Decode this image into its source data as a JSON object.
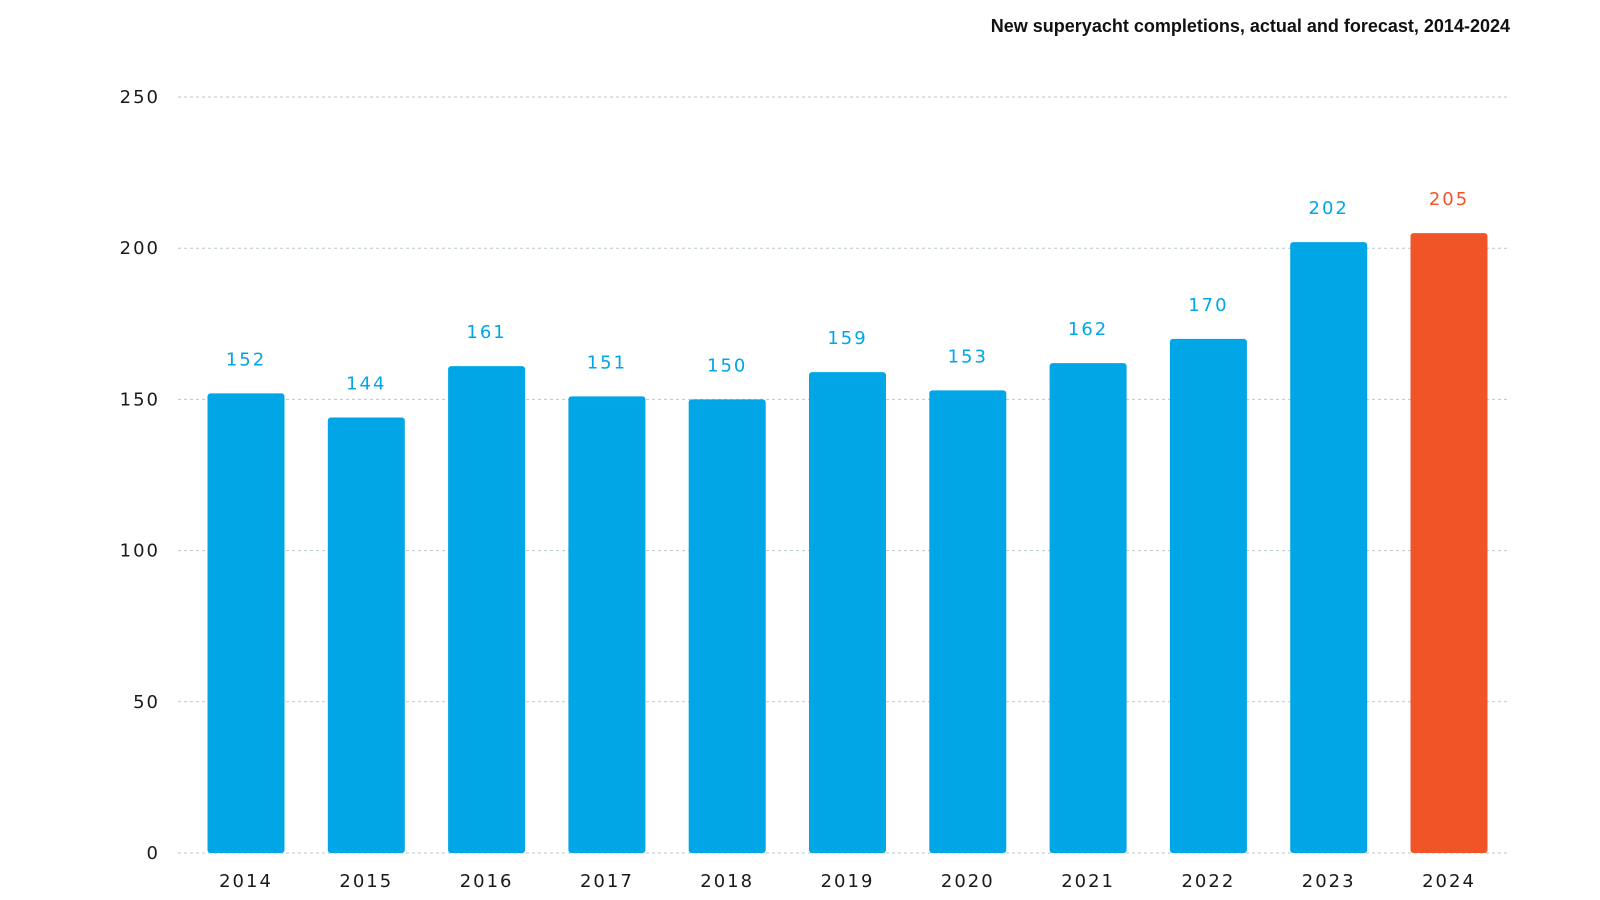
{
  "chart_data": {
    "type": "bar",
    "title": "New superyacht completions, actual and forecast, 2014-2024",
    "categories": [
      "2014",
      "2015",
      "2016",
      "2017",
      "2018",
      "2019",
      "2020",
      "2021",
      "2022",
      "2023",
      "2024"
    ],
    "values": [
      152,
      144,
      161,
      151,
      150,
      159,
      153,
      162,
      170,
      202,
      205
    ],
    "value_labels": [
      "152",
      "144",
      "161",
      "151",
      "150",
      "159",
      "153",
      "162",
      "170",
      "202",
      "205"
    ],
    "ylim": [
      0,
      250
    ],
    "yticks": [
      0,
      50,
      100,
      150,
      200,
      250
    ],
    "ytick_labels": [
      "0",
      "50",
      "100",
      "150",
      "200",
      "250"
    ],
    "xlabel": "",
    "ylabel": "",
    "grid": true,
    "colors": {
      "actual": "#00a6e6",
      "forecast": "#f15427"
    },
    "bar_colors": [
      "#00a6e6",
      "#00a6e6",
      "#00a6e6",
      "#00a6e6",
      "#00a6e6",
      "#00a6e6",
      "#00a6e6",
      "#00a6e6",
      "#00a6e6",
      "#00a6e6",
      "#f15427"
    ]
  }
}
